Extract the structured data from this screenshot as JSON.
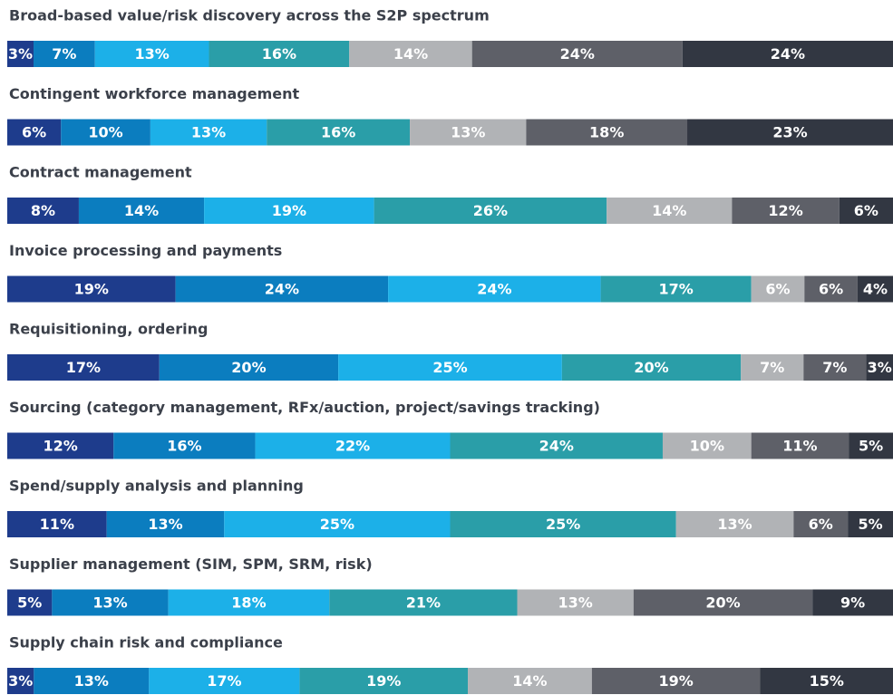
{
  "chart_data": {
    "type": "bar",
    "orientation": "horizontal",
    "stacked": true,
    "categories": [
      "Broad-based value/risk discovery across the S2P spectrum",
      "Contingent workforce management",
      "Contract management",
      "Invoice processing and payments",
      "Requisitioning, ordering",
      "Sourcing (category management, RFx/auction, project/savings tracking)",
      "Spend/supply analysis and planning",
      "Supplier management (SIM, SPM, SRM, risk)",
      "Supply chain risk and compliance"
    ],
    "series": [
      {
        "color": "#1e3c8c",
        "values": [
          3,
          6,
          8,
          19,
          17,
          12,
          11,
          5,
          3
        ],
        "value_labels": [
          "3%",
          "6%",
          "8%",
          "19%",
          "17%",
          "12%",
          "11%",
          "5%",
          "3%"
        ]
      },
      {
        "color": "#0b7dbf",
        "values": [
          7,
          10,
          14,
          24,
          20,
          16,
          13,
          13,
          13
        ],
        "value_labels": [
          "7%",
          "10%",
          "14%",
          "24%",
          "20%",
          "16%",
          "13%",
          "13%",
          "13%"
        ]
      },
      {
        "color": "#1cb0e8",
        "values": [
          13,
          13,
          19,
          24,
          25,
          22,
          25,
          18,
          17
        ],
        "value_labels": [
          "13%",
          "13%",
          "19%",
          "24%",
          "25%",
          "22%",
          "25%",
          "18%",
          "17%"
        ]
      },
      {
        "color": "#2a9ea8",
        "values": [
          16,
          16,
          26,
          17,
          20,
          24,
          25,
          21,
          19
        ],
        "value_labels": [
          "16%",
          "16%",
          "26%",
          "17%",
          "20%",
          "24%",
          "25%",
          "21%",
          "19%"
        ]
      },
      {
        "color": "#b1b3b6",
        "values": [
          14,
          13,
          14,
          6,
          7,
          10,
          13,
          13,
          14
        ],
        "value_labels": [
          "14%",
          "13%",
          "14%",
          "6%",
          "7%",
          "10%",
          "13%",
          "13%",
          "14%"
        ]
      },
      {
        "color": "#5e6068",
        "values": [
          24,
          18,
          12,
          6,
          7,
          11,
          6,
          20,
          19
        ],
        "value_labels": [
          "24%",
          "18%",
          "12%",
          "6%",
          "7%",
          "11%",
          "6%",
          "20%",
          "19%"
        ]
      },
      {
        "color": "#323742",
        "values": [
          24,
          23,
          6,
          4,
          3,
          5,
          5,
          9,
          15
        ],
        "value_labels": [
          "24%",
          "23%",
          "6%",
          "4%",
          "3%",
          "5%",
          "5%",
          "9%",
          "15%"
        ]
      }
    ]
  }
}
